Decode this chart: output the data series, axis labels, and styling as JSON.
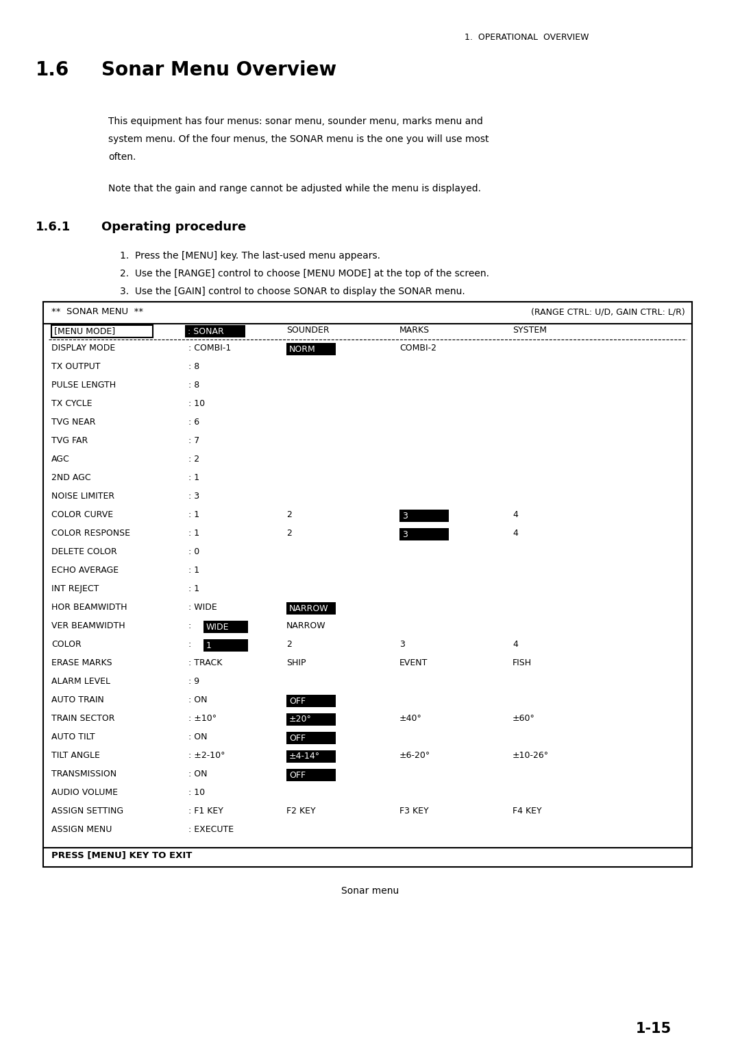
{
  "header_right": "1.  OPERATIONAL  OVERVIEW",
  "body_text_1": "This equipment has four menus: sonar menu, sounder menu, marks menu and\nsystem menu. Of the four menus, the SONAR menu is the one you will use most\noften.",
  "body_text_2": "Note that the gain and range cannot be adjusted while the menu is displayed.",
  "menu_header_left": "**  SONAR MENU  **",
  "menu_header_right": "(RANGE CTRL: U/D, GAIN CTRL: L/R)",
  "menu_rows": [
    {
      "label": "DISPLAY MODE",
      "c0": ": COMBI-1",
      "c1": "NORM",
      "c2": "COMBI-2",
      "c3": "",
      "hl": [
        1
      ]
    },
    {
      "label": "TX OUTPUT",
      "c0": ": 8",
      "c1": "",
      "c2": "",
      "c3": "",
      "hl": []
    },
    {
      "label": "PULSE LENGTH",
      "c0": ": 8",
      "c1": "",
      "c2": "",
      "c3": "",
      "hl": []
    },
    {
      "label": "TX CYCLE",
      "c0": ": 10",
      "c1": "",
      "c2": "",
      "c3": "",
      "hl": []
    },
    {
      "label": "TVG NEAR",
      "c0": ": 6",
      "c1": "",
      "c2": "",
      "c3": "",
      "hl": []
    },
    {
      "label": "TVG FAR",
      "c0": ": 7",
      "c1": "",
      "c2": "",
      "c3": "",
      "hl": []
    },
    {
      "label": "AGC",
      "c0": ": 2",
      "c1": "",
      "c2": "",
      "c3": "",
      "hl": []
    },
    {
      "label": "2ND AGC",
      "c0": ": 1",
      "c1": "",
      "c2": "",
      "c3": "",
      "hl": []
    },
    {
      "label": "NOISE LIMITER",
      "c0": ": 3",
      "c1": "",
      "c2": "",
      "c3": "",
      "hl": []
    },
    {
      "label": "COLOR CURVE",
      "c0": ": 1",
      "c1": "2",
      "c2": "3",
      "c3": "4",
      "hl": [
        2
      ]
    },
    {
      "label": "COLOR RESPONSE",
      "c0": ": 1",
      "c1": "2",
      "c2": "3",
      "c3": "4",
      "hl": [
        2
      ]
    },
    {
      "label": "DELETE COLOR",
      "c0": ": 0",
      "c1": "",
      "c2": "",
      "c3": "",
      "hl": []
    },
    {
      "label": "ECHO AVERAGE",
      "c0": ": 1",
      "c1": "",
      "c2": "",
      "c3": "",
      "hl": []
    },
    {
      "label": "INT REJECT",
      "c0": ": 1",
      "c1": "",
      "c2": "",
      "c3": "",
      "hl": []
    },
    {
      "label": "HOR BEAMWIDTH",
      "c0": ": WIDE",
      "c1": "NARROW",
      "c2": "",
      "c3": "",
      "hl": [
        1
      ]
    },
    {
      "label": "VER BEAMWIDTH",
      "c0": ": WIDE",
      "c1": "NARROW",
      "c2": "",
      "c3": "",
      "hl": [
        0
      ]
    },
    {
      "label": "COLOR",
      "c0": ": 1",
      "c1": "2",
      "c2": "3",
      "c3": "4",
      "hl": [
        0
      ]
    },
    {
      "label": "ERASE MARKS",
      "c0": ": TRACK",
      "c1": "SHIP",
      "c2": "EVENT",
      "c3": "FISH",
      "hl": []
    },
    {
      "label": "ALARM LEVEL",
      "c0": ": 9",
      "c1": "",
      "c2": "",
      "c3": "",
      "hl": []
    },
    {
      "label": "AUTO TRAIN",
      "c0": ": ON",
      "c1": "OFF",
      "c2": "",
      "c3": "",
      "hl": [
        1
      ]
    },
    {
      "label": "TRAIN SECTOR",
      "c0": ": ±10°",
      "c1": "±20°",
      "c2": "±40°",
      "c3": "±60°",
      "hl": [
        1
      ]
    },
    {
      "label": "AUTO TILT",
      "c0": ": ON",
      "c1": "OFF",
      "c2": "",
      "c3": "",
      "hl": [
        1
      ]
    },
    {
      "label": "TILT ANGLE",
      "c0": ": ±2-10°",
      "c1": "±4-14°",
      "c2": "±6-20°",
      "c3": "±10-26°",
      "hl": [
        1
      ]
    },
    {
      "label": "TRANSMISSION",
      "c0": ": ON",
      "c1": "OFF",
      "c2": "",
      "c3": "",
      "hl": [
        1
      ]
    },
    {
      "label": "AUDIO VOLUME",
      "c0": ": 10",
      "c1": "",
      "c2": "",
      "c3": "",
      "hl": []
    },
    {
      "label": "ASSIGN SETTING",
      "c0": ": F1 KEY",
      "c1": "F2 KEY",
      "c2": "F3 KEY",
      "c3": "F4 KEY",
      "hl": []
    },
    {
      "label": "ASSIGN MENU",
      "c0": ": EXECUTE",
      "c1": "",
      "c2": "",
      "c3": "",
      "hl": []
    }
  ],
  "menu_footer": "PRESS [MENU] KEY TO EXIT",
  "figure_caption": "Sonar menu",
  "page_number": "1-15"
}
